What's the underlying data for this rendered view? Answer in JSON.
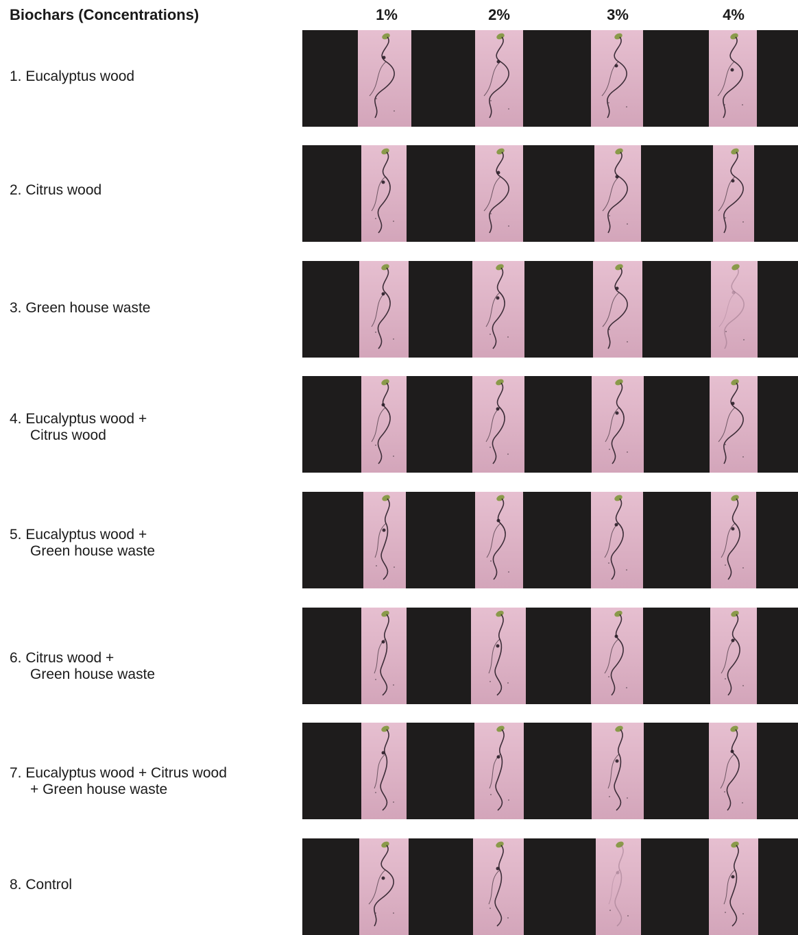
{
  "header": {
    "title": "Biochars (Concentrations)",
    "columns": [
      "1%",
      "2%",
      "3%",
      "4%"
    ]
  },
  "rows": [
    {
      "line1": "1. Eucalyptus wood",
      "line2": ""
    },
    {
      "line1": "2. Citrus wood",
      "line2": ""
    },
    {
      "line1": "3. Green house waste",
      "line2": ""
    },
    {
      "line1": "4. Eucalyptus wood +",
      "line2": "Citrus wood"
    },
    {
      "line1": "5. Eucalyptus wood +",
      "line2": "Green house waste"
    },
    {
      "line1": "6. Citrus wood +",
      "line2": "Green house waste"
    },
    {
      "line1": "7. Eucalyptus wood + Citrus wood",
      "line2": "+ Green house waste"
    },
    {
      "line1": "8. Control",
      "line2": ""
    }
  ],
  "colors": {
    "strip_background": "#1e1c1c",
    "photo_background": "#dcb1c4",
    "root": "#2a1e28",
    "cotyledon": "#8a9a4a"
  },
  "photo_subject": "seedling-root-photo"
}
